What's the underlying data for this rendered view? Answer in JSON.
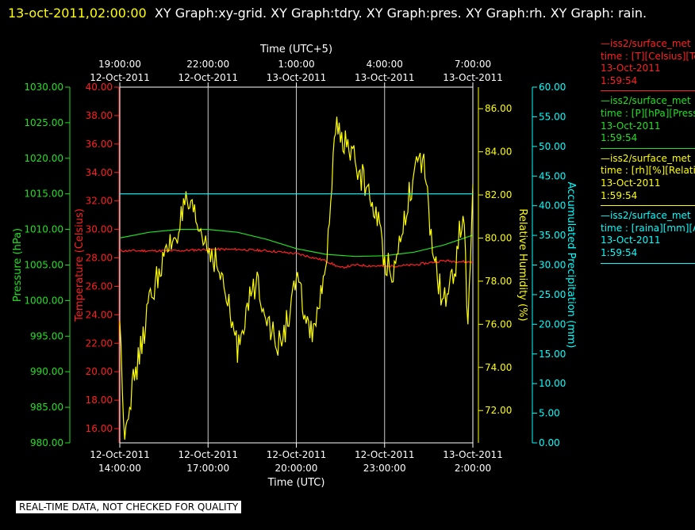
{
  "header": {
    "timestamp": "13-oct-2011,02:00:00",
    "titles": "XY Graph:xy-grid.  XY Graph:tdry.  XY Graph:pres.  XY Graph:rh.  XY Graph: rain."
  },
  "banner": "REAL-TIME DATA, NOT CHECKED FOR QUALITY",
  "legend": [
    {
      "name": "—iss2/surface_met",
      "field": "time : [T][Celsius][Te",
      "date": "13-Oct-2011",
      "time": "1:59:54",
      "color": "#ff2020"
    },
    {
      "name": "—iss2/surface_met",
      "field": "time : [P][hPa][Press",
      "date": "13-Oct-2011",
      "time": "1:59:54",
      "color": "#20e020"
    },
    {
      "name": "—iss2/surface_met",
      "field": "time : [rh][%][Relati",
      "date": "13-Oct-2011",
      "time": "1:59:54",
      "color": "#ffff00"
    },
    {
      "name": "—iss2/surface_met",
      "field": "time : [raina][mm][Ac",
      "date": "13-Oct-2011",
      "time": "1:59:54",
      "color": "#00ffff"
    }
  ],
  "chart_data": {
    "type": "line",
    "x_bottom": {
      "label": "Time (UTC)",
      "range": [
        "2011-10-12 14:00",
        "2011-10-13 02:00"
      ],
      "ticks": [
        {
          "date": "12-Oct-2011",
          "time": "14:00:00"
        },
        {
          "date": "12-Oct-2011",
          "time": "17:00:00"
        },
        {
          "date": "12-Oct-2011",
          "time": "20:00:00"
        },
        {
          "date": "12-Oct-2011",
          "time": "23:00:00"
        },
        {
          "date": "13-Oct-2011",
          "time": "2:00:00"
        }
      ]
    },
    "x_top": {
      "label": "Time (UTC+5)",
      "ticks": [
        {
          "time": "19:00:00",
          "date": "12-Oct-2011"
        },
        {
          "time": "22:00:00",
          "date": "12-Oct-2011"
        },
        {
          "time": "1:00:00",
          "date": "13-Oct-2011"
        },
        {
          "time": "4:00:00",
          "date": "13-Oct-2011"
        },
        {
          "time": "7:00:00",
          "date": "13-Oct-2011"
        }
      ]
    },
    "axes": {
      "pressure": {
        "label": "Pressure (hPa)",
        "range": [
          980,
          1030
        ],
        "ticks": [
          "980.00",
          "985.00",
          "990.00",
          "995.00",
          "1000.00",
          "1005.00",
          "1010.00",
          "1015.00",
          "1020.00",
          "1025.00",
          "1030.00"
        ],
        "color": "#20e020"
      },
      "temperature": {
        "label": "Temperature (Celsius)",
        "range": [
          15,
          40
        ],
        "ticks": [
          "16.00",
          "18.00",
          "20.00",
          "22.00",
          "24.00",
          "26.00",
          "28.00",
          "30.00",
          "32.00",
          "34.00",
          "36.00",
          "38.00",
          "40.00"
        ],
        "color": "#ff2020"
      },
      "humidity": {
        "label": "Relative Humidity (%)",
        "range": [
          70.5,
          87
        ],
        "ticks": [
          "72.00",
          "74.00",
          "76.00",
          "78.00",
          "80.00",
          "82.00",
          "84.00",
          "86.00"
        ],
        "color": "#ffff00"
      },
      "precipitation": {
        "label": "Accumulated Precipitation (mm)",
        "range": [
          0,
          60
        ],
        "ticks": [
          "0.00",
          "5.00",
          "10.00",
          "15.00",
          "20.00",
          "25.00",
          "30.00",
          "35.00",
          "40.00",
          "45.00",
          "50.00",
          "55.00",
          "60.00"
        ],
        "color": "#00ffff"
      }
    },
    "grid": true,
    "series": [
      {
        "name": "iss2/surface_met T",
        "axis": "temperature",
        "color": "#ff2020",
        "x": [
          "2011-10-12 14:00",
          "2011-10-12 15:00",
          "2011-10-12 16:00",
          "2011-10-12 17:00",
          "2011-10-12 18:00",
          "2011-10-12 19:00",
          "2011-10-12 20:00",
          "2011-10-12 21:00",
          "2011-10-12 21:30",
          "2011-10-12 22:00",
          "2011-10-12 23:00",
          "2011-10-13 00:00",
          "2011-10-13 01:00",
          "2011-10-13 02:00"
        ],
        "y": [
          28.5,
          28.5,
          28.5,
          28.6,
          28.6,
          28.5,
          28.3,
          27.8,
          27.3,
          27.5,
          27.4,
          27.5,
          27.8,
          27.7
        ]
      },
      {
        "name": "iss2/surface_met P",
        "axis": "pressure",
        "color": "#20e020",
        "x": [
          "2011-10-12 14:00",
          "2011-10-12 15:00",
          "2011-10-12 16:00",
          "2011-10-12 17:00",
          "2011-10-12 18:00",
          "2011-10-12 19:00",
          "2011-10-12 20:00",
          "2011-10-12 21:00",
          "2011-10-12 22:00",
          "2011-10-12 23:00",
          "2011-10-13 00:00",
          "2011-10-13 01:00",
          "2011-10-13 02:00"
        ],
        "y": [
          1008.8,
          1009.6,
          1010.0,
          1010.0,
          1009.6,
          1008.6,
          1007.3,
          1006.5,
          1006.2,
          1006.3,
          1006.8,
          1007.8,
          1009.2
        ]
      },
      {
        "name": "iss2/surface_met rh",
        "axis": "humidity",
        "color": "#ffff00",
        "x": [
          "2011-10-12 14:00",
          "2011-10-12 14:10",
          "2011-10-12 14:20",
          "2011-10-12 14:40",
          "2011-10-12 15:00",
          "2011-10-12 15:20",
          "2011-10-12 15:40",
          "2011-10-12 16:00",
          "2011-10-12 16:15",
          "2011-10-12 16:30",
          "2011-10-12 16:50",
          "2011-10-12 17:15",
          "2011-10-12 17:40",
          "2011-10-12 18:00",
          "2011-10-12 18:15",
          "2011-10-12 18:40",
          "2011-10-12 19:00",
          "2011-10-12 19:20",
          "2011-10-12 19:40",
          "2011-10-12 20:00",
          "2011-10-12 20:30",
          "2011-10-12 21:00",
          "2011-10-12 21:10",
          "2011-10-12 21:20",
          "2011-10-12 21:40",
          "2011-10-12 22:00",
          "2011-10-12 22:20",
          "2011-10-12 22:45",
          "2011-10-12 23:00",
          "2011-10-12 23:20",
          "2011-10-12 23:40",
          "2011-10-13 00:00",
          "2011-10-13 00:20",
          "2011-10-13 00:40",
          "2011-10-13 01:00",
          "2011-10-13 01:20",
          "2011-10-13 01:40",
          "2011-10-13 01:50",
          "2011-10-13 02:00"
        ],
        "y": [
          76.0,
          71.0,
          72.5,
          74.5,
          77.0,
          78.5,
          79.5,
          80.5,
          81.5,
          81.0,
          80.0,
          79.0,
          77.0,
          74.8,
          76.5,
          78.0,
          76.5,
          74.8,
          76.0,
          78.0,
          75.5,
          78.0,
          82.0,
          85.0,
          84.5,
          83.5,
          82.5,
          81.0,
          79.0,
          78.5,
          81.0,
          83.0,
          83.5,
          79.0,
          77.0,
          78.0,
          81.5,
          76.0,
          82.5
        ]
      },
      {
        "name": "iss2/surface_met raina",
        "axis": "precipitation",
        "color": "#00ffff",
        "x": [
          "2011-10-12 14:00",
          "2011-10-13 02:00"
        ],
        "y": [
          42.0,
          42.0
        ]
      }
    ]
  }
}
